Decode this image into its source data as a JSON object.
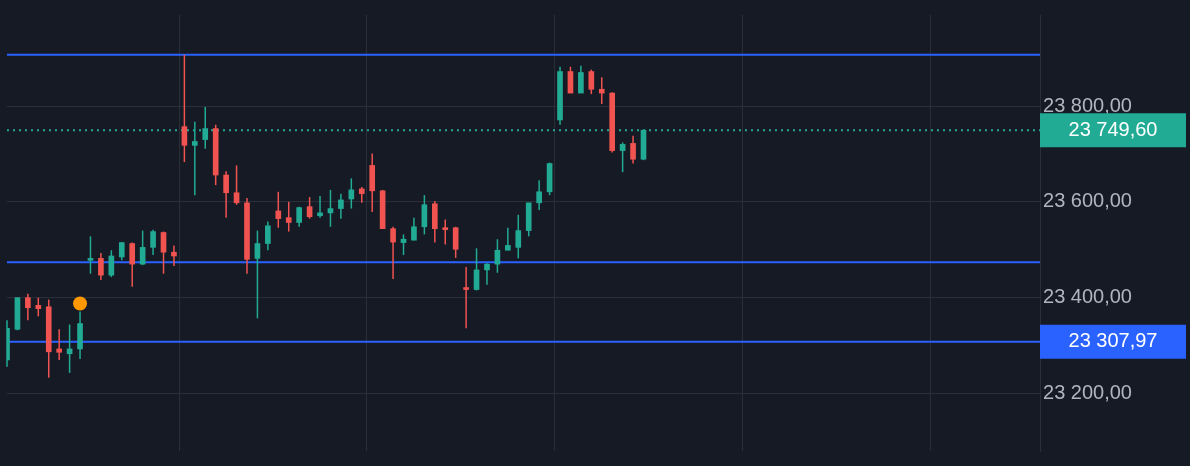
{
  "chart_data": {
    "type": "candlestick",
    "categories": [
      null,
      null,
      null,
      null,
      null,
      null,
      null,
      null,
      null,
      null,
      null,
      null,
      null,
      null,
      null,
      null,
      null,
      null,
      null,
      null,
      null,
      null,
      null,
      null,
      null,
      null,
      null,
      null,
      null,
      null,
      null,
      null,
      null,
      null,
      null,
      null,
      null,
      null,
      null,
      null,
      null,
      null,
      null,
      null,
      null,
      null,
      null,
      null,
      null,
      null,
      null,
      null,
      null,
      null,
      null,
      null,
      null,
      null,
      null,
      null,
      null,
      null,
      null,
      null,
      null,
      null,
      null,
      null,
      null,
      null,
      null,
      null,
      null,
      null,
      null,
      null,
      null,
      null,
      null,
      null,
      null,
      null,
      null,
      null,
      null,
      null,
      null,
      null,
      null,
      null,
      null,
      null,
      null,
      null,
      null,
      null,
      null,
      null,
      null,
      null
    ],
    "ohlc": [
      [
        23270,
        23353,
        23256,
        23336
      ],
      [
        23334,
        23400,
        23332,
        23400
      ],
      [
        23400,
        23408,
        23353,
        23379
      ],
      [
        23384,
        23400,
        23361,
        23377
      ],
      [
        23381,
        23396,
        23233,
        23287
      ],
      [
        23293,
        23334,
        23270,
        23286
      ],
      [
        23283,
        23344,
        23243,
        23293
      ],
      [
        23293,
        23371,
        23272,
        23346
      ],
      [
        23478,
        23528,
        23450,
        23480
      ],
      [
        23482,
        23493,
        23437,
        23447
      ],
      [
        23447,
        23499,
        23443,
        23487
      ],
      [
        23485,
        23516,
        23478,
        23515
      ],
      [
        23513,
        23515,
        23423,
        23470
      ],
      [
        23470,
        23540,
        23468,
        23505
      ],
      [
        23505,
        23542,
        23489,
        23538
      ],
      [
        23536,
        23538,
        23450,
        23495
      ],
      [
        23495,
        23509,
        23466,
        23487
      ],
      [
        23757,
        23907,
        23683,
        23718
      ],
      [
        23718,
        23767,
        23614,
        23726
      ],
      [
        23730,
        23798,
        23711,
        23753
      ],
      [
        23753,
        23761,
        23635,
        23656
      ],
      [
        23656,
        23664,
        23567,
        23619
      ],
      [
        23619,
        23676,
        23594,
        23598
      ],
      [
        23598,
        23608,
        23450,
        23480
      ],
      [
        23482,
        23540,
        23357,
        23513
      ],
      [
        23513,
        23559,
        23499,
        23550
      ],
      [
        23581,
        23621,
        23546,
        23565
      ],
      [
        23567,
        23600,
        23538,
        23557
      ],
      [
        23557,
        23590,
        23548,
        23588
      ],
      [
        23590,
        23610,
        23565,
        23569
      ],
      [
        23571,
        23612,
        23567,
        23577
      ],
      [
        23577,
        23625,
        23548,
        23586
      ],
      [
        23586,
        23617,
        23565,
        23604
      ],
      [
        23606,
        23649,
        23586,
        23625
      ],
      [
        23627,
        23631,
        23598,
        23617
      ],
      [
        23676,
        23701,
        23579,
        23623
      ],
      [
        23623,
        23625,
        23544,
        23544
      ],
      [
        23544,
        23548,
        23439,
        23516
      ],
      [
        23515,
        23532,
        23489,
        23522
      ],
      [
        23520,
        23567,
        23520,
        23548
      ],
      [
        23548,
        23614,
        23532,
        23594
      ],
      [
        23596,
        23602,
        23515,
        23544
      ],
      [
        23544,
        23563,
        23511,
        23542
      ],
      [
        23546,
        23548,
        23483,
        23501
      ],
      [
        23421,
        23464,
        23336,
        23417
      ],
      [
        23417,
        23503,
        23415,
        23458
      ],
      [
        23458,
        23472,
        23427,
        23470
      ],
      [
        23470,
        23522,
        23452,
        23499
      ],
      [
        23499,
        23546,
        23499,
        23509
      ],
      [
        23505,
        23573,
        23482,
        23540
      ],
      [
        23540,
        23598,
        23528,
        23598
      ],
      [
        23598,
        23645,
        23583,
        23621
      ],
      [
        23621,
        23682,
        23614,
        23680
      ],
      [
        23771,
        23882,
        23761,
        23872
      ],
      [
        23872,
        23882,
        23827,
        23827
      ],
      [
        23827,
        23884,
        23827,
        23870
      ],
      [
        23872,
        23876,
        23825,
        23835
      ],
      [
        23835,
        23860,
        23804,
        23827
      ],
      [
        23827,
        23829,
        23703,
        23707
      ],
      [
        23707,
        23724,
        23662,
        23720
      ],
      [
        23722,
        23738,
        23680,
        23689
      ],
      [
        23689,
        23750,
        23687,
        23749.6
      ],
      null,
      null,
      null,
      null,
      null,
      null,
      null,
      null,
      null,
      null,
      null,
      null,
      null,
      null,
      null,
      null,
      null,
      null,
      null,
      null,
      null,
      null,
      null,
      null,
      null,
      null,
      null,
      null,
      null,
      null,
      null,
      null,
      null,
      null,
      null,
      null,
      null,
      null
    ],
    "colors": [
      "#22ab94",
      "#22ab94",
      "#f05350",
      "#f05350",
      "#f05350",
      "#f05350",
      "#22ab94",
      "#22ab94",
      "#22ab94",
      "#f05350",
      "#22ab94",
      "#22ab94",
      "#f05350",
      "#22ab94",
      "#22ab94",
      "#f05350",
      "#f05350",
      "#f05350",
      "#22ab94",
      "#22ab94",
      "#f05350",
      "#f05350",
      "#f05350",
      "#f05350",
      "#22ab94",
      "#22ab94",
      "#f05350",
      "#f05350",
      "#22ab94",
      "#f05350",
      "#22ab94",
      "#22ab94",
      "#22ab94",
      "#22ab94",
      "#f05350",
      "#f05350",
      "#f05350",
      "#f05350",
      "#22ab94",
      "#22ab94",
      "#22ab94",
      "#f05350",
      "#f05350",
      "#f05350",
      "#f05350",
      "#22ab94",
      "#22ab94",
      "#22ab94",
      "#22ab94",
      "#22ab94",
      "#22ab94",
      "#22ab94",
      "#22ab94",
      "#22ab94",
      "#f05350",
      "#22ab94",
      "#f05350",
      "#f05350",
      "#f05350",
      "#22ab94",
      "#f05350",
      "#22ab94",
      null,
      null,
      null,
      null,
      null,
      null,
      null,
      null,
      null,
      null,
      null,
      null,
      null,
      null,
      null,
      null,
      null,
      null,
      null,
      null,
      null,
      null,
      null,
      null,
      null,
      null,
      null,
      null,
      null,
      null,
      null,
      null,
      null,
      null,
      null,
      null,
      null,
      null
    ],
    "series": [
      {
        "type": "scatter",
        "color": "#ff9800",
        "values": [
          null,
          null,
          null,
          null,
          null,
          null,
          null,
          23388,
          null,
          null,
          null,
          null,
          null,
          null,
          null,
          null,
          null,
          null,
          null,
          null,
          null,
          null,
          null,
          null,
          null,
          null,
          null,
          null,
          null,
          null,
          null,
          null,
          null,
          null,
          null,
          null,
          null,
          null,
          null,
          null,
          null,
          null,
          null,
          null,
          null,
          null,
          null,
          null,
          null,
          null,
          null,
          null,
          null,
          null,
          null,
          null,
          null,
          null,
          null,
          null,
          null,
          null,
          null,
          null,
          null,
          null,
          null,
          null,
          null,
          null,
          null,
          null,
          null,
          null,
          null,
          null,
          null,
          null,
          null,
          null,
          null,
          null,
          null,
          null,
          null,
          null,
          null,
          null,
          null,
          null,
          null,
          null,
          null,
          null,
          null,
          null,
          null,
          null,
          null,
          null
        ]
      }
    ],
    "marker": "circle",
    "ylim": [
      23080,
      23990
    ],
    "yticks": [
      {
        "value": 23200,
        "label": "23 200,00"
      },
      {
        "value": 23400,
        "label": "23 400,00"
      },
      {
        "value": 23600,
        "label": "23 600,00"
      },
      {
        "value": 23800,
        "label": "23 800,00"
      }
    ],
    "tick_labels": "y",
    "grid": true,
    "ref_lines": [
      {
        "axis": "y",
        "value": 23907,
        "color": "#2962ff"
      },
      {
        "axis": "y",
        "value": 23474,
        "color": "#2962ff"
      },
      {
        "axis": "y",
        "value": 23307.97,
        "label": "23 307,97",
        "color": "#2962ff"
      },
      {
        "axis": "y",
        "value": 23749.6,
        "label": "23 749,60",
        "color": "#22ab94",
        "line_style": "dotted"
      }
    ]
  }
}
